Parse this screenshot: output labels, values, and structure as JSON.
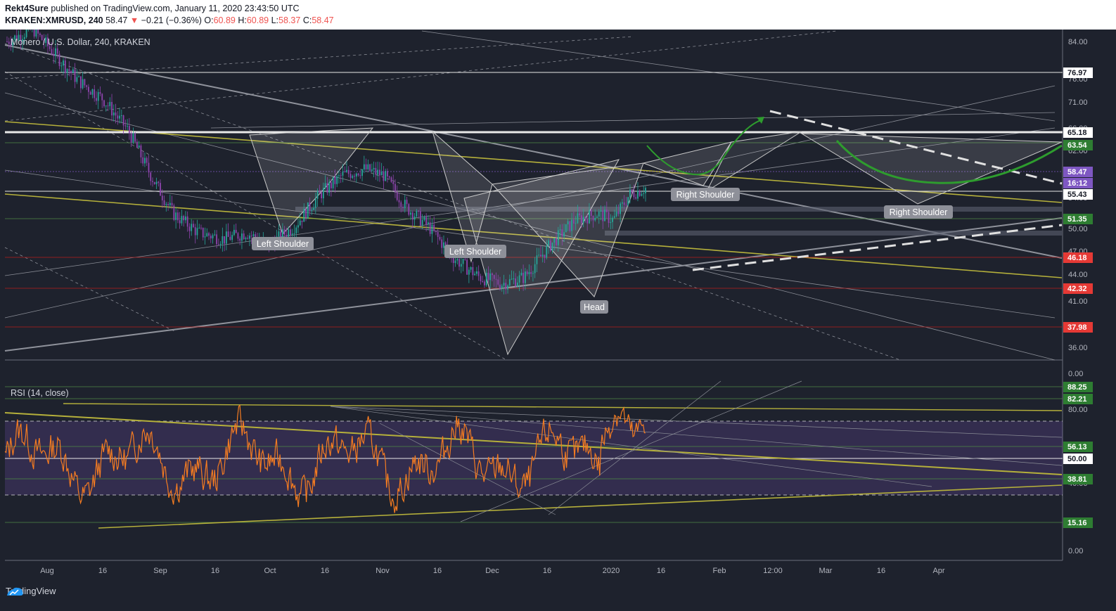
{
  "header": {
    "author": "Rekt4Sure",
    "published_text": " published on TradingView.com, January 11, 2020 23:43:50 UTC",
    "symbol": "KRAKEN:XMRUSD, 240",
    "last": "58.47",
    "change": "−0.21 (−0.36%)",
    "open_label": "O:",
    "open": "60.89",
    "high_label": "H:",
    "high": "60.89",
    "low_label": "L:",
    "low": "58.37",
    "close_label": "C:",
    "close": "58.47"
  },
  "footer": {
    "brand": "TradingView"
  },
  "colors": {
    "background": "#1e222d",
    "candle_up": "#26a69a",
    "candle_down": "#8e44ad",
    "rsi_line": "#f57c21",
    "rsi_band": "#7e57c2",
    "trend_yellow": "#b5b03b",
    "arrow_green": "#2e9c2e",
    "level_green": "#2e7d32",
    "level_red": "#d32f2f"
  },
  "chart_data": [
    {
      "type": "line",
      "title": "Monero / U.S. Dollar, 240, KRAKEN",
      "series_kind": "candlestick",
      "y_ticks": [
        "84.00",
        "76.00",
        "71.00",
        "66.00",
        "62.00",
        "58.00",
        "54.00",
        "50.00",
        "47.00",
        "44.00",
        "41.00",
        "38.50",
        "36.00"
      ],
      "x_ticks": [
        "Aug",
        "16",
        "Sep",
        "16",
        "Oct",
        "16",
        "Nov",
        "16",
        "Dec",
        "16",
        "2020",
        "16",
        "Feb",
        "12:00",
        "Mar",
        "16",
        "Apr"
      ],
      "price_levels": [
        {
          "value": "76.97",
          "style": "white"
        },
        {
          "value": "65.18",
          "style": "white"
        },
        {
          "value": "63.54",
          "style": "green"
        },
        {
          "value": "58.47",
          "style": "purple"
        },
        {
          "value": "16:12",
          "style": "purple"
        },
        {
          "value": "55.43",
          "style": "white"
        },
        {
          "value": "51.35",
          "style": "green"
        },
        {
          "value": "46.18",
          "style": "red"
        },
        {
          "value": "42.32",
          "style": "red"
        },
        {
          "value": "37.98",
          "style": "red"
        }
      ],
      "pattern_labels": [
        "Left Shoulder",
        "Left Shoulder",
        "Head",
        "Right Shoulder",
        "Right Shoulder"
      ],
      "close_path": [
        [
          0,
          84
        ],
        [
          8,
          86
        ],
        [
          15,
          82
        ],
        [
          22,
          78
        ],
        [
          30,
          75
        ],
        [
          38,
          70
        ],
        [
          45,
          63
        ],
        [
          52,
          57
        ],
        [
          60,
          54
        ],
        [
          68,
          53
        ],
        [
          75,
          54
        ],
        [
          82,
          52
        ],
        [
          90,
          55
        ],
        [
          98,
          60
        ],
        [
          105,
          63
        ],
        [
          112,
          64
        ],
        [
          118,
          63
        ],
        [
          125,
          58
        ],
        [
          132,
          55
        ],
        [
          140,
          50
        ],
        [
          148,
          47
        ],
        [
          155,
          46
        ],
        [
          162,
          47
        ],
        [
          170,
          52
        ],
        [
          178,
          56
        ],
        [
          185,
          57
        ],
        [
          190,
          56
        ],
        [
          195,
          60
        ],
        [
          200,
          61
        ]
      ]
    },
    {
      "type": "line",
      "title": "RSI (14, close)",
      "y_ticks": [
        "80.00",
        "60.00",
        "40.00",
        "20.00",
        "0.00"
      ],
      "levels": [
        {
          "value": "88.25",
          "style": "green"
        },
        {
          "value": "82.21",
          "style": "green"
        },
        {
          "value": "56.13",
          "style": "green"
        },
        {
          "value": "50.00",
          "style": "white"
        },
        {
          "value": "38.81",
          "style": "green"
        },
        {
          "value": "15.16",
          "style": "green"
        }
      ],
      "band": [
        30,
        70
      ]
    }
  ]
}
